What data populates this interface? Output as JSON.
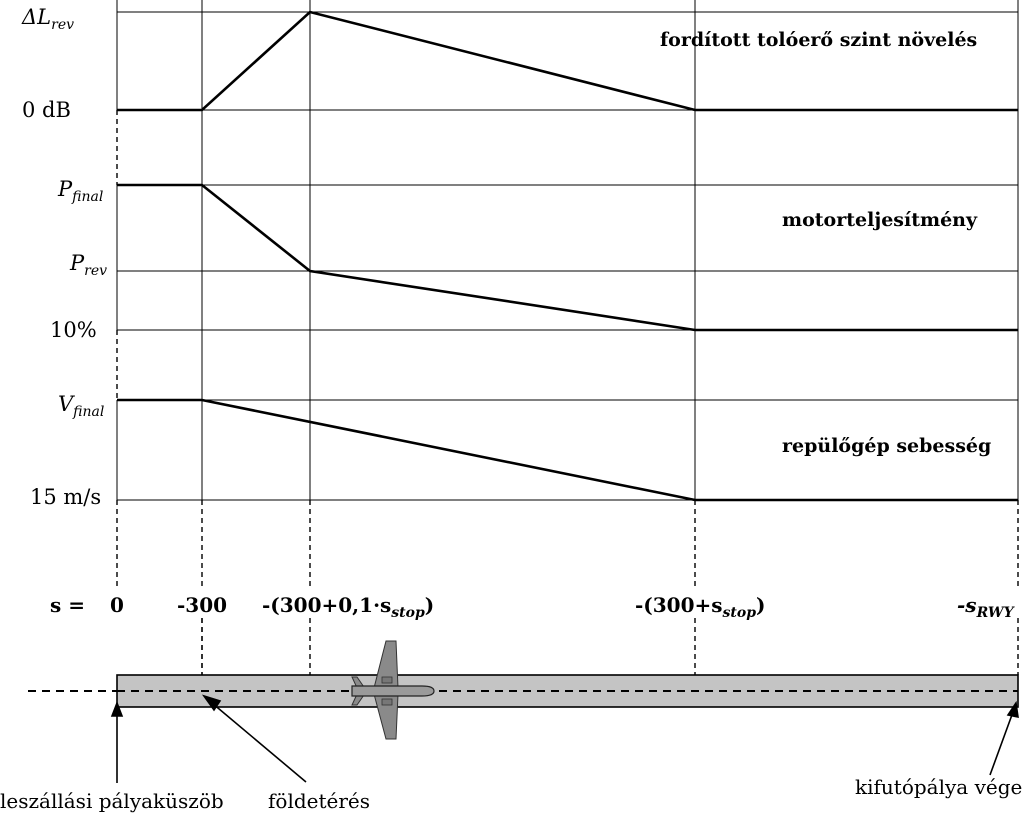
{
  "panels": {
    "reverse_thrust": {
      "title": "fordított tolóerő szint növelés",
      "y_top_label": {
        "main": "ΔL",
        "sub": "rev"
      },
      "y_bottom_label": "0 dB"
    },
    "engine_power": {
      "title": "motorteljesítmény",
      "y_top_label": {
        "main": "P",
        "sub": "final"
      },
      "y_mid_label": {
        "main": "P",
        "sub": "rev"
      },
      "y_bottom_label": "10%"
    },
    "aircraft_speed": {
      "title": "repülőgép sebesség",
      "y_top_label": {
        "main": "V",
        "sub": "final"
      },
      "y_bottom_label": "15 m/s"
    }
  },
  "s_axis": {
    "prefix": "s =",
    "ticks": {
      "zero": "0",
      "minus300": "-300",
      "p3_main": "-(300+0,1·s",
      "p3_sub": "stop",
      "p3_end": ")",
      "p4_main": "-(300+s",
      "p4_sub": "stop",
      "p4_end": ")",
      "p5_main": "-s",
      "p5_sub": "RWY"
    }
  },
  "runway": {
    "fill_color": "#c4c4c4",
    "labels": {
      "threshold": "leszállási pályaküszöb",
      "touchdown": "földetérés",
      "runway_end": "kifutópálya vége"
    }
  }
}
